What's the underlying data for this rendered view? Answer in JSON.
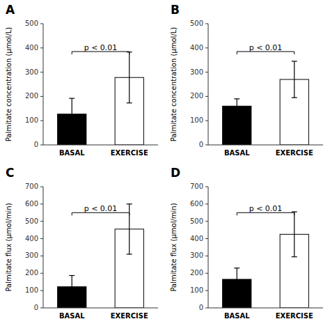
{
  "chart_data": [
    {
      "type": "bar",
      "title": "A",
      "ylabel": "Palmitate concentration (μmol/L)",
      "categories": [
        "BASAL",
        "EXERCISE"
      ],
      "values": [
        127,
        278
      ],
      "errors": [
        65,
        105
      ],
      "colors": [
        "black",
        "white"
      ],
      "ylim": [
        0,
        500
      ],
      "yticks": [
        0,
        100,
        200,
        300,
        400,
        500
      ],
      "grid": false,
      "annotations": [
        {
          "text": "p < 0.01",
          "y": 385,
          "text_y": 392
        }
      ]
    },
    {
      "type": "bar",
      "title": "B",
      "ylabel": "Palmitate concentration (μmol/L)",
      "categories": [
        "BASAL",
        "EXERCISE"
      ],
      "values": [
        160,
        270
      ],
      "errors": [
        30,
        75
      ],
      "colors": [
        "black",
        "white"
      ],
      "ylim": [
        0,
        500
      ],
      "yticks": [
        0,
        100,
        200,
        300,
        400,
        500
      ],
      "grid": false,
      "annotations": [
        {
          "text": "p < 0.01",
          "y": 385,
          "text_y": 392
        }
      ]
    },
    {
      "type": "bar",
      "title": "C",
      "ylabel": "Palmitate flux (μmol/min)",
      "categories": [
        "BASAL",
        "EXERCISE"
      ],
      "values": [
        122,
        455
      ],
      "errors": [
        65,
        145
      ],
      "colors": [
        "black",
        "white"
      ],
      "ylim": [
        0,
        700
      ],
      "yticks": [
        0,
        100,
        200,
        300,
        400,
        500,
        600,
        700
      ],
      "grid": false,
      "annotations": [
        {
          "text": "p < 0.01",
          "y": 550,
          "text_y": 560
        }
      ]
    },
    {
      "type": "bar",
      "title": "D",
      "ylabel": "Palmitate flux (μmol/min)",
      "categories": [
        "BASAL",
        "EXERCISE"
      ],
      "values": [
        165,
        425
      ],
      "errors": [
        65,
        130
      ],
      "colors": [
        "black",
        "white"
      ],
      "ylim": [
        0,
        700
      ],
      "yticks": [
        0,
        100,
        200,
        300,
        400,
        500,
        600,
        700
      ],
      "grid": false,
      "annotations": [
        {
          "text": "p < 0.01",
          "y": 550,
          "text_y": 560
        }
      ]
    }
  ]
}
